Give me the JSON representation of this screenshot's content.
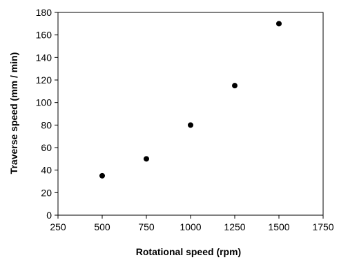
{
  "chart_data": {
    "type": "scatter",
    "title": "",
    "xlabel": "Rotational speed (rpm)",
    "ylabel": "Traverse speed (mm / min)",
    "xlim": [
      250,
      1750
    ],
    "ylim": [
      0,
      180
    ],
    "x_ticks": [
      250,
      500,
      750,
      1000,
      1250,
      1500,
      1750
    ],
    "x_tick_labels": [
      "250",
      "500",
      "750",
      "1000",
      "1250",
      "1500",
      "1750"
    ],
    "y_ticks": [
      0,
      20,
      40,
      60,
      80,
      100,
      120,
      140,
      160,
      180
    ],
    "y_tick_labels": [
      "0",
      "20",
      "40",
      "60",
      "80",
      "100",
      "120",
      "140",
      "160",
      "180"
    ],
    "grid": false,
    "legend": "none",
    "marker_color": "#000000",
    "series": [
      {
        "x": [
          500,
          750,
          1000,
          1250,
          1500
        ],
        "y": [
          35,
          50,
          80,
          115,
          170
        ]
      }
    ]
  }
}
